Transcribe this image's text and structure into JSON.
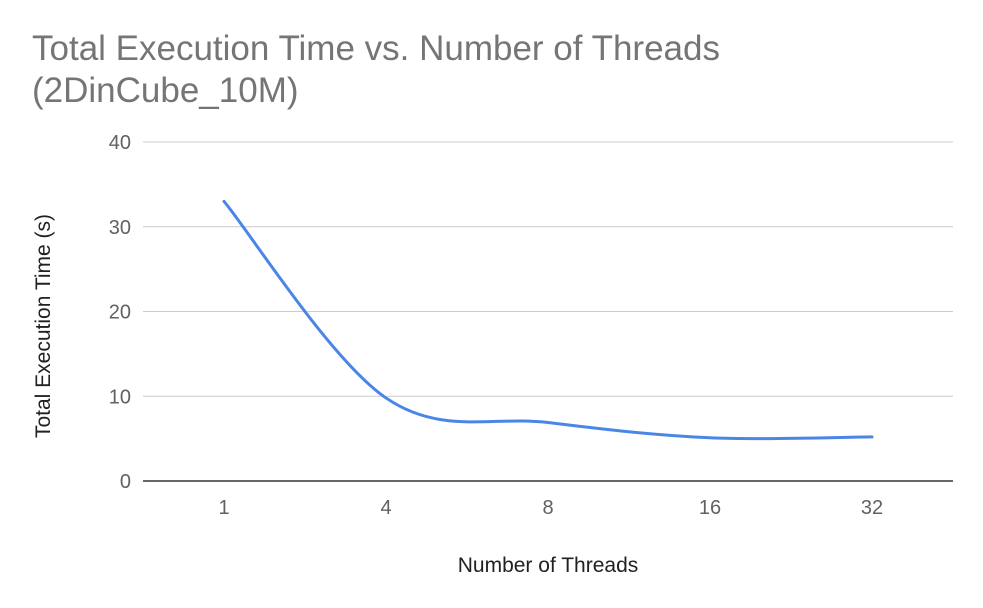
{
  "chart_data": {
    "type": "line",
    "title_lines": [
      "Total Execution Time vs. Number of Threads",
      "(2DinCube_10M)"
    ],
    "xlabel": "Number of Threads",
    "ylabel": "Total Execution Time (s)",
    "categories": [
      "1",
      "4",
      "8",
      "16",
      "32"
    ],
    "series": [
      {
        "values": [
          33,
          9.8,
          6.9,
          5.1,
          5.2
        ]
      }
    ],
    "ylim": [
      0,
      40
    ],
    "yticks": [
      0,
      10,
      20,
      30,
      40
    ],
    "grid": true,
    "legend": "none",
    "line_color": "#4a86e8"
  }
}
